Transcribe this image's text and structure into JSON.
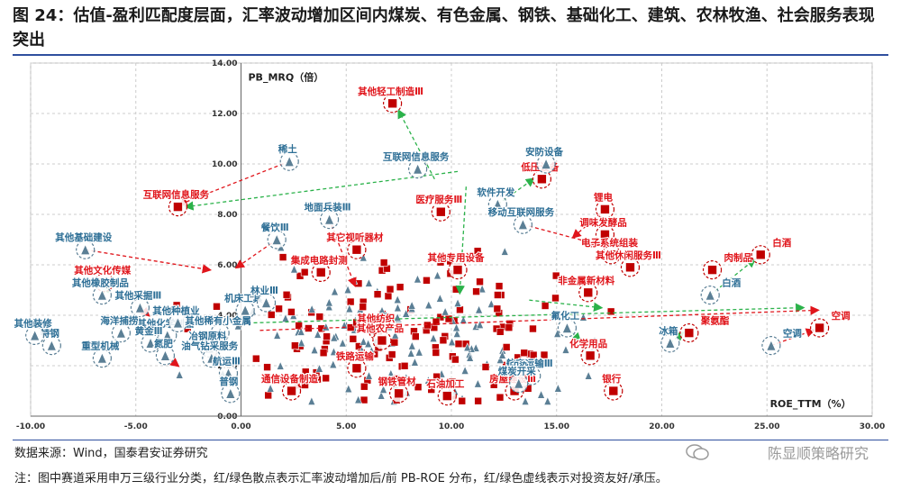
{
  "page": {
    "title": "图 24：估值-盈利匹配度层面，汇率波动增加区间内煤炭、有色金属、钢铁、基础化工、建筑、农林牧渔、社会服务表现突出",
    "source": "数据来源：Wind，国泰君安证券研究",
    "note": "注：图中赛道采用申万三级行业分类，红/绿色散点表示汇率波动增加后/前 PB-ROE 分布，红/绿色虚线表示对投资友好/承压。",
    "watermark": "陈显顺策略研究"
  },
  "colors": {
    "after": "#c00000",
    "before": "#5b7f95",
    "friendly_line": "#e0151b",
    "pressure_line": "#2bb24a",
    "label_after": "#e0151b",
    "label_before": "#2e6f96",
    "label_neutral": "#111111",
    "axis": "#555555"
  },
  "chart_data": {
    "type": "scatter",
    "xlabel": "ROE_TTM（%）",
    "ylabel": "PB_MRQ（倍）",
    "xlim": [
      -10,
      30
    ],
    "ylim": [
      0,
      14
    ],
    "grid": true,
    "x_ticks": [
      "-10.00",
      "-5.00",
      "0.00",
      "5.00",
      "10.00",
      "15.00",
      "20.00",
      "25.00",
      "30.00"
    ],
    "y_ticks": [
      "0.00",
      "2.00",
      "4.00",
      "6.00",
      "8.00",
      "10.00",
      "12.00",
      "14.00"
    ],
    "series": [
      {
        "key": "after",
        "marker": "square"
      },
      {
        "key": "before",
        "marker": "triangle"
      }
    ],
    "highlights": [
      {
        "label": "其他轻工制造Ⅲ",
        "series": "after",
        "x": 7.2,
        "y": 12.4
      },
      {
        "label": "稀土",
        "series": "before",
        "x": 2.3,
        "y": 10.1
      },
      {
        "label": "互联网信息服务",
        "series": "before",
        "x": 8.4,
        "y": 9.8
      },
      {
        "label": "互联网信息服务",
        "series": "after",
        "x": -3.0,
        "y": 8.3
      },
      {
        "label": "地面兵装Ⅲ",
        "series": "before",
        "x": 4.2,
        "y": 7.8
      },
      {
        "label": "医疗服务Ⅲ",
        "series": "after",
        "x": 9.5,
        "y": 8.1
      },
      {
        "label": "软件开发",
        "series": "before",
        "x": 12.2,
        "y": 8.4
      },
      {
        "label": "低压设备",
        "series": "after",
        "x": 14.3,
        "y": 9.4
      },
      {
        "label": "安防设备",
        "series": "before",
        "x": 14.5,
        "y": 10.0
      },
      {
        "label": "锂电",
        "series": "after",
        "x": 17.3,
        "y": 8.2
      },
      {
        "label": "移动互联网服务",
        "series": "before",
        "x": 13.4,
        "y": 7.6
      },
      {
        "label": "调味发酵品",
        "series": "after",
        "x": 17.3,
        "y": 7.2
      },
      {
        "label": "其他基础建设",
        "series": "before",
        "x": -7.4,
        "y": 6.6
      },
      {
        "label": "餐饮Ⅲ",
        "series": "before",
        "x": 1.7,
        "y": 7.0
      },
      {
        "label": "其它视听器材",
        "series": "after",
        "x": 5.5,
        "y": 6.6
      },
      {
        "label": "电子系统组装",
        "series": "after",
        "x": 17.6,
        "y": 6.4
      },
      {
        "label": "其他休闲服务Ⅲ",
        "series": "after",
        "x": 18.5,
        "y": 5.9
      },
      {
        "label": "肉制品",
        "series": "after",
        "x": 22.4,
        "y": 5.8
      },
      {
        "label": "白酒",
        "series": "after",
        "x": 24.7,
        "y": 6.4
      },
      {
        "label": "白酒",
        "series": "before",
        "x": 22.3,
        "y": 4.8
      },
      {
        "label": "其他文化传媒",
        "series": "after",
        "x": -6.5,
        "y": 5.3
      },
      {
        "label": "其他橡胶制品",
        "series": "before",
        "x": -6.6,
        "y": 4.8
      },
      {
        "label": "其他采掘Ⅲ",
        "series": "before",
        "x": -4.8,
        "y": 4.3
      },
      {
        "label": "集成电路封测",
        "series": "after",
        "x": 3.8,
        "y": 5.7
      },
      {
        "label": "其他专用设备",
        "series": "after",
        "x": 10.3,
        "y": 5.8
      },
      {
        "label": "非金属新材料",
        "series": "after",
        "x": 16.5,
        "y": 4.9
      },
      {
        "label": "机床工具",
        "series": "before",
        "x": 0.2,
        "y": 4.2
      },
      {
        "label": "林业Ⅲ",
        "series": "before",
        "x": 1.2,
        "y": 4.5
      },
      {
        "label": "其他化学制品",
        "series": "before",
        "x": -3.5,
        "y": 3.2
      },
      {
        "label": "海洋捕捞",
        "series": "before",
        "x": -5.7,
        "y": 3.3
      },
      {
        "label": "其他种植业",
        "series": "before",
        "x": -3.0,
        "y": 3.7
      },
      {
        "label": "其他稀有小金属",
        "series": "before",
        "x": -1.0,
        "y": 3.3
      },
      {
        "label": "黄金Ⅲ",
        "series": "before",
        "x": -4.3,
        "y": 2.9
      },
      {
        "label": "冶钢原料",
        "series": "before",
        "x": -1.5,
        "y": 2.7
      },
      {
        "label": "氮肥",
        "series": "before",
        "x": -3.6,
        "y": 2.4
      },
      {
        "label": "油气钻采服务",
        "series": "before",
        "x": -1.4,
        "y": 2.3
      },
      {
        "label": "重型机械",
        "series": "before",
        "x": -6.6,
        "y": 2.3
      },
      {
        "label": "铁路运输",
        "series": "after",
        "x": 5.5,
        "y": 1.9
      },
      {
        "label": "航运Ⅲ",
        "series": "before",
        "x": -0.6,
        "y": 1.7
      },
      {
        "label": "普钢",
        "series": "before",
        "x": -0.5,
        "y": 0.9
      },
      {
        "label": "其他纺织",
        "series": "after",
        "x": 6.5,
        "y": 3.4
      },
      {
        "label": "聚氨酯",
        "series": "after",
        "x": 21.3,
        "y": 3.3
      },
      {
        "label": "空调",
        "series": "after",
        "x": 27.5,
        "y": 3.5
      },
      {
        "label": "空调",
        "series": "before",
        "x": 25.2,
        "y": 2.8
      },
      {
        "label": "冰箱",
        "series": "before",
        "x": 20.4,
        "y": 2.9
      },
      {
        "label": "航空运输Ⅲ",
        "series": "before",
        "x": 13.8,
        "y": 1.6
      },
      {
        "label": "印染",
        "series": "before",
        "x": 13.3,
        "y": 1.5
      },
      {
        "label": "氟化工",
        "series": "before",
        "x": 15.5,
        "y": 3.5
      },
      {
        "label": "化学用品",
        "series": "after",
        "x": 16.6,
        "y": 2.4
      },
      {
        "label": "房屋建设Ⅲ",
        "series": "after",
        "x": 13.0,
        "y": 1.0
      },
      {
        "label": "银行",
        "series": "after",
        "x": 17.7,
        "y": 1.0
      },
      {
        "label": "通信设备制造",
        "series": "after",
        "x": 2.4,
        "y": 1.0
      },
      {
        "label": "石油加工",
        "series": "after",
        "x": 9.8,
        "y": 0.8
      },
      {
        "label": "钢铁管材",
        "series": "after",
        "x": 7.5,
        "y": 0.9
      },
      {
        "label": "煤炭开采",
        "series": "before",
        "x": 13.2,
        "y": 1.3
      },
      {
        "label": "其他农产品",
        "series": "after",
        "x": 6.7,
        "y": 3.0
      },
      {
        "label": "特钢",
        "series": "before",
        "x": -9.0,
        "y": 2.8
      },
      {
        "label": "其他装修",
        "series": "before",
        "x": -9.8,
        "y": 3.2
      }
    ],
    "arrows": [
      {
        "from": [
          2.3,
          10.1
        ],
        "to": [
          -2.9,
          8.4
        ],
        "kind": "friendly"
      },
      {
        "from": [
          10.3,
          9.7
        ],
        "to": [
          -2.6,
          8.3
        ],
        "kind": "pressure"
      },
      {
        "from": [
          9.2,
          9.4
        ],
        "to": [
          7.5,
          12.1
        ],
        "kind": "pressure"
      },
      {
        "from": [
          10.7,
          9.1
        ],
        "to": [
          10.4,
          4.9
        ],
        "kind": "pressure"
      },
      {
        "from": [
          4.2,
          7.8
        ],
        "to": [
          5.4,
          5.2
        ],
        "kind": "friendly"
      },
      {
        "from": [
          -7.4,
          6.6
        ],
        "to": [
          -1.5,
          5.8
        ],
        "kind": "friendly"
      },
      {
        "from": [
          1.7,
          7.0
        ],
        "to": [
          -0.2,
          5.9
        ],
        "kind": "friendly"
      },
      {
        "from": [
          12.2,
          8.4
        ],
        "to": [
          13.9,
          9.4
        ],
        "kind": "pressure"
      },
      {
        "from": [
          13.4,
          7.6
        ],
        "to": [
          17.0,
          6.8
        ],
        "kind": "friendly"
      },
      {
        "from": [
          17.3,
          8.2
        ],
        "to": [
          15.8,
          7.1
        ],
        "kind": "friendly"
      },
      {
        "from": [
          13.7,
          4.6
        ],
        "to": [
          17.1,
          4.3
        ],
        "kind": "pressure"
      },
      {
        "from": [
          -6.6,
          4.8
        ],
        "to": [
          -6.3,
          5.2
        ],
        "kind": "pressure"
      },
      {
        "from": [
          -4.8,
          4.3
        ],
        "to": [
          -4.4,
          4.0
        ],
        "kind": "friendly"
      },
      {
        "from": [
          0.6,
          3.7
        ],
        "to": [
          26.7,
          4.3
        ],
        "kind": "pressure"
      },
      {
        "from": [
          0.9,
          3.4
        ],
        "to": [
          27.4,
          4.2
        ],
        "kind": "friendly"
      },
      {
        "from": [
          22.3,
          4.8
        ],
        "to": [
          24.4,
          6.2
        ],
        "kind": "pressure"
      },
      {
        "from": [
          25.2,
          2.8
        ],
        "to": [
          27.2,
          3.4
        ],
        "kind": "friendly"
      },
      {
        "from": [
          20.4,
          2.9
        ],
        "to": [
          21.0,
          3.3
        ],
        "kind": "pressure"
      },
      {
        "from": [
          -3.6,
          2.4
        ],
        "to": [
          -3.0,
          2.0
        ],
        "kind": "friendly"
      },
      {
        "from": [
          -1.5,
          2.7
        ],
        "to": [
          -1.2,
          2.4
        ],
        "kind": "friendly"
      },
      {
        "from": [
          15.5,
          3.5
        ],
        "to": [
          16.1,
          3.0
        ],
        "kind": "pressure"
      },
      {
        "from": [
          13.8,
          1.6
        ],
        "to": [
          13.0,
          1.1
        ],
        "kind": "friendly"
      },
      {
        "from": [
          2.8,
          1.3
        ],
        "to": [
          2.5,
          1.1
        ],
        "kind": "friendly"
      },
      {
        "from": [
          -0.5,
          0.9
        ],
        "to": [
          -0.6,
          1.6
        ],
        "kind": "pressure"
      }
    ]
  }
}
